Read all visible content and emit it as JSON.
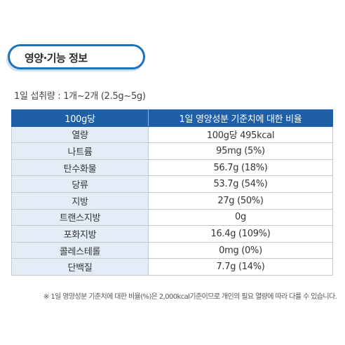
{
  "title": "영양·기능 정보",
  "intake": "1일 섭취량 : 1개~2개 (2.5g~5g)",
  "table": {
    "headers": [
      "100g당",
      "1일 영양성분 기준치에 대한 비율"
    ],
    "rows": [
      [
        "열량",
        "100g당 495kcal"
      ],
      [
        "나트륨",
        "95mg (5%)"
      ],
      [
        "탄수화물",
        "56.7g (18%)"
      ],
      [
        "당류",
        "53.7g (54%)"
      ],
      [
        "지방",
        "27g (50%)"
      ],
      [
        "트랜스지방",
        "0g"
      ],
      [
        "포화지방",
        "16.4g (109%)"
      ],
      [
        "콜레스테롤",
        "0mg (0%)"
      ],
      [
        "단백질",
        "7.7g (14%)"
      ]
    ]
  },
  "footnote": "※ 1일 영양성분 기준치에 대한 비율(%)은 2,000kcal기준이므로 개인의 필요 열량에 따라 다를 수 있습니다.",
  "colors": {
    "header_bg": "#1f5fa8",
    "name_cell_bg": "#e3edf7",
    "title_border": "#1b73bd"
  }
}
